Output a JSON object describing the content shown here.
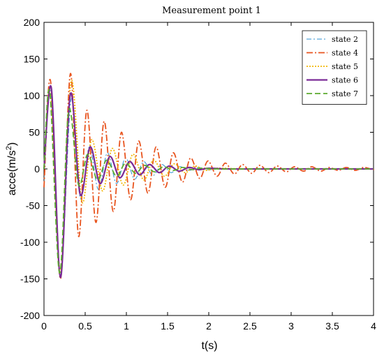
{
  "chart_data": {
    "type": "line",
    "title": "Measurement point 1",
    "xlabel": "t(s)",
    "ylabel": "acce(m/s",
    "ylabel_sup": "2",
    "ylabel_suffix": ")",
    "xlim": [
      0,
      4
    ],
    "ylim": [
      -200,
      200
    ],
    "x_ticks": [
      0,
      0.5,
      1,
      1.5,
      2,
      2.5,
      3,
      3.5,
      4
    ],
    "x_tick_labels": [
      "0",
      "0.5",
      "1",
      "1.5",
      "2",
      "2.5",
      "3",
      "3.5",
      "4"
    ],
    "y_ticks": [
      200,
      150,
      100,
      50,
      0,
      -50,
      -100,
      -150,
      -200
    ],
    "y_tick_labels": [
      "200",
      "150",
      "100",
      "50",
      "0",
      "-50",
      "-100",
      "-150",
      "-200"
    ],
    "grid": false,
    "legend_position": "top-right",
    "series": [
      {
        "name": "state 2",
        "color": "#2E8FD0",
        "dash": "7,3,2,3",
        "width": 1,
        "x": [
          0,
          0.08,
          0.2,
          0.33,
          0.44,
          0.55,
          0.66,
          0.77,
          0.88,
          0.99,
          1.1,
          1.21,
          1.32,
          1.43,
          1.54,
          1.65,
          1.76,
          1.87,
          1.98,
          2.2,
          2.6,
          3.0,
          3.5,
          4.0
        ],
        "y": [
          0,
          105,
          -145,
          95,
          -40,
          30,
          -28,
          22,
          -20,
          15,
          -14,
          10,
          -9,
          6,
          -5,
          3,
          -2,
          2,
          -1,
          0,
          0,
          0,
          0,
          0
        ]
      },
      {
        "name": "state 4",
        "color": "#E8541E",
        "dash": "9,3,2,3",
        "width": 1.8,
        "x": [
          0,
          0.08,
          0.2,
          0.32,
          0.42,
          0.52,
          0.63,
          0.73,
          0.84,
          0.94,
          1.05,
          1.15,
          1.26,
          1.36,
          1.47,
          1.57,
          1.68,
          1.78,
          1.89,
          1.99,
          2.1,
          2.2,
          2.31,
          2.41,
          2.52,
          2.62,
          2.73,
          2.83,
          2.94,
          3.04,
          3.15,
          3.25,
          3.36,
          3.46,
          3.57,
          3.67,
          3.78,
          3.88,
          3.99,
          4.0
        ],
        "y": [
          -25,
          120,
          -150,
          130,
          -92,
          80,
          -73,
          65,
          -58,
          50,
          -42,
          38,
          -33,
          30,
          -25,
          22,
          -18,
          15,
          -13,
          11,
          -10,
          8,
          -7,
          6,
          -6,
          5,
          -5,
          4,
          -4,
          3,
          -3,
          3,
          -3,
          2,
          -2,
          2,
          -2,
          2,
          -1,
          0
        ]
      },
      {
        "name": "state 5",
        "color": "#F2B705",
        "dash": "2,2",
        "width": 1.8,
        "x": [
          0,
          0.08,
          0.2,
          0.33,
          0.46,
          0.58,
          0.71,
          0.83,
          0.96,
          1.08,
          1.21,
          1.33,
          1.46,
          1.58,
          1.71,
          1.83,
          1.96,
          2.1,
          2.4,
          2.8,
          3.2,
          4.0
        ],
        "y": [
          0,
          100,
          -140,
          120,
          -45,
          40,
          -30,
          28,
          -22,
          20,
          -15,
          12,
          -10,
          7,
          -5,
          4,
          -2,
          1,
          0,
          0,
          0,
          0
        ]
      },
      {
        "name": "state 6",
        "color": "#7B2A96",
        "dash": "",
        "width": 2.2,
        "x": [
          0,
          0.09,
          0.2,
          0.32,
          0.44,
          0.56,
          0.68,
          0.8,
          0.92,
          1.04,
          1.16,
          1.28,
          1.4,
          1.52,
          1.64,
          1.76,
          1.88,
          2.0,
          2.2,
          2.6,
          3.0,
          3.5,
          4.0
        ],
        "y": [
          0,
          110,
          -148,
          102,
          -35,
          30,
          -20,
          17,
          -12,
          10,
          -8,
          6,
          -5,
          4,
          -3,
          2,
          -1,
          1,
          0,
          0,
          0,
          0,
          0
        ]
      },
      {
        "name": "state 7",
        "color": "#5BAA2E",
        "dash": "8,4",
        "width": 1.8,
        "x": [
          0,
          0.07,
          0.19,
          0.3,
          0.42,
          0.53,
          0.65,
          0.76,
          0.88,
          0.99,
          1.11,
          1.22,
          1.34,
          1.45,
          1.57,
          1.68,
          1.8,
          1.91,
          2.1,
          2.5,
          3.0,
          3.5,
          4.0
        ],
        "y": [
          0,
          105,
          -142,
          80,
          -22,
          20,
          -15,
          12,
          -10,
          8,
          -6,
          5,
          -4,
          3,
          -2,
          2,
          -1,
          1,
          0,
          0,
          0,
          0,
          0
        ]
      }
    ]
  }
}
